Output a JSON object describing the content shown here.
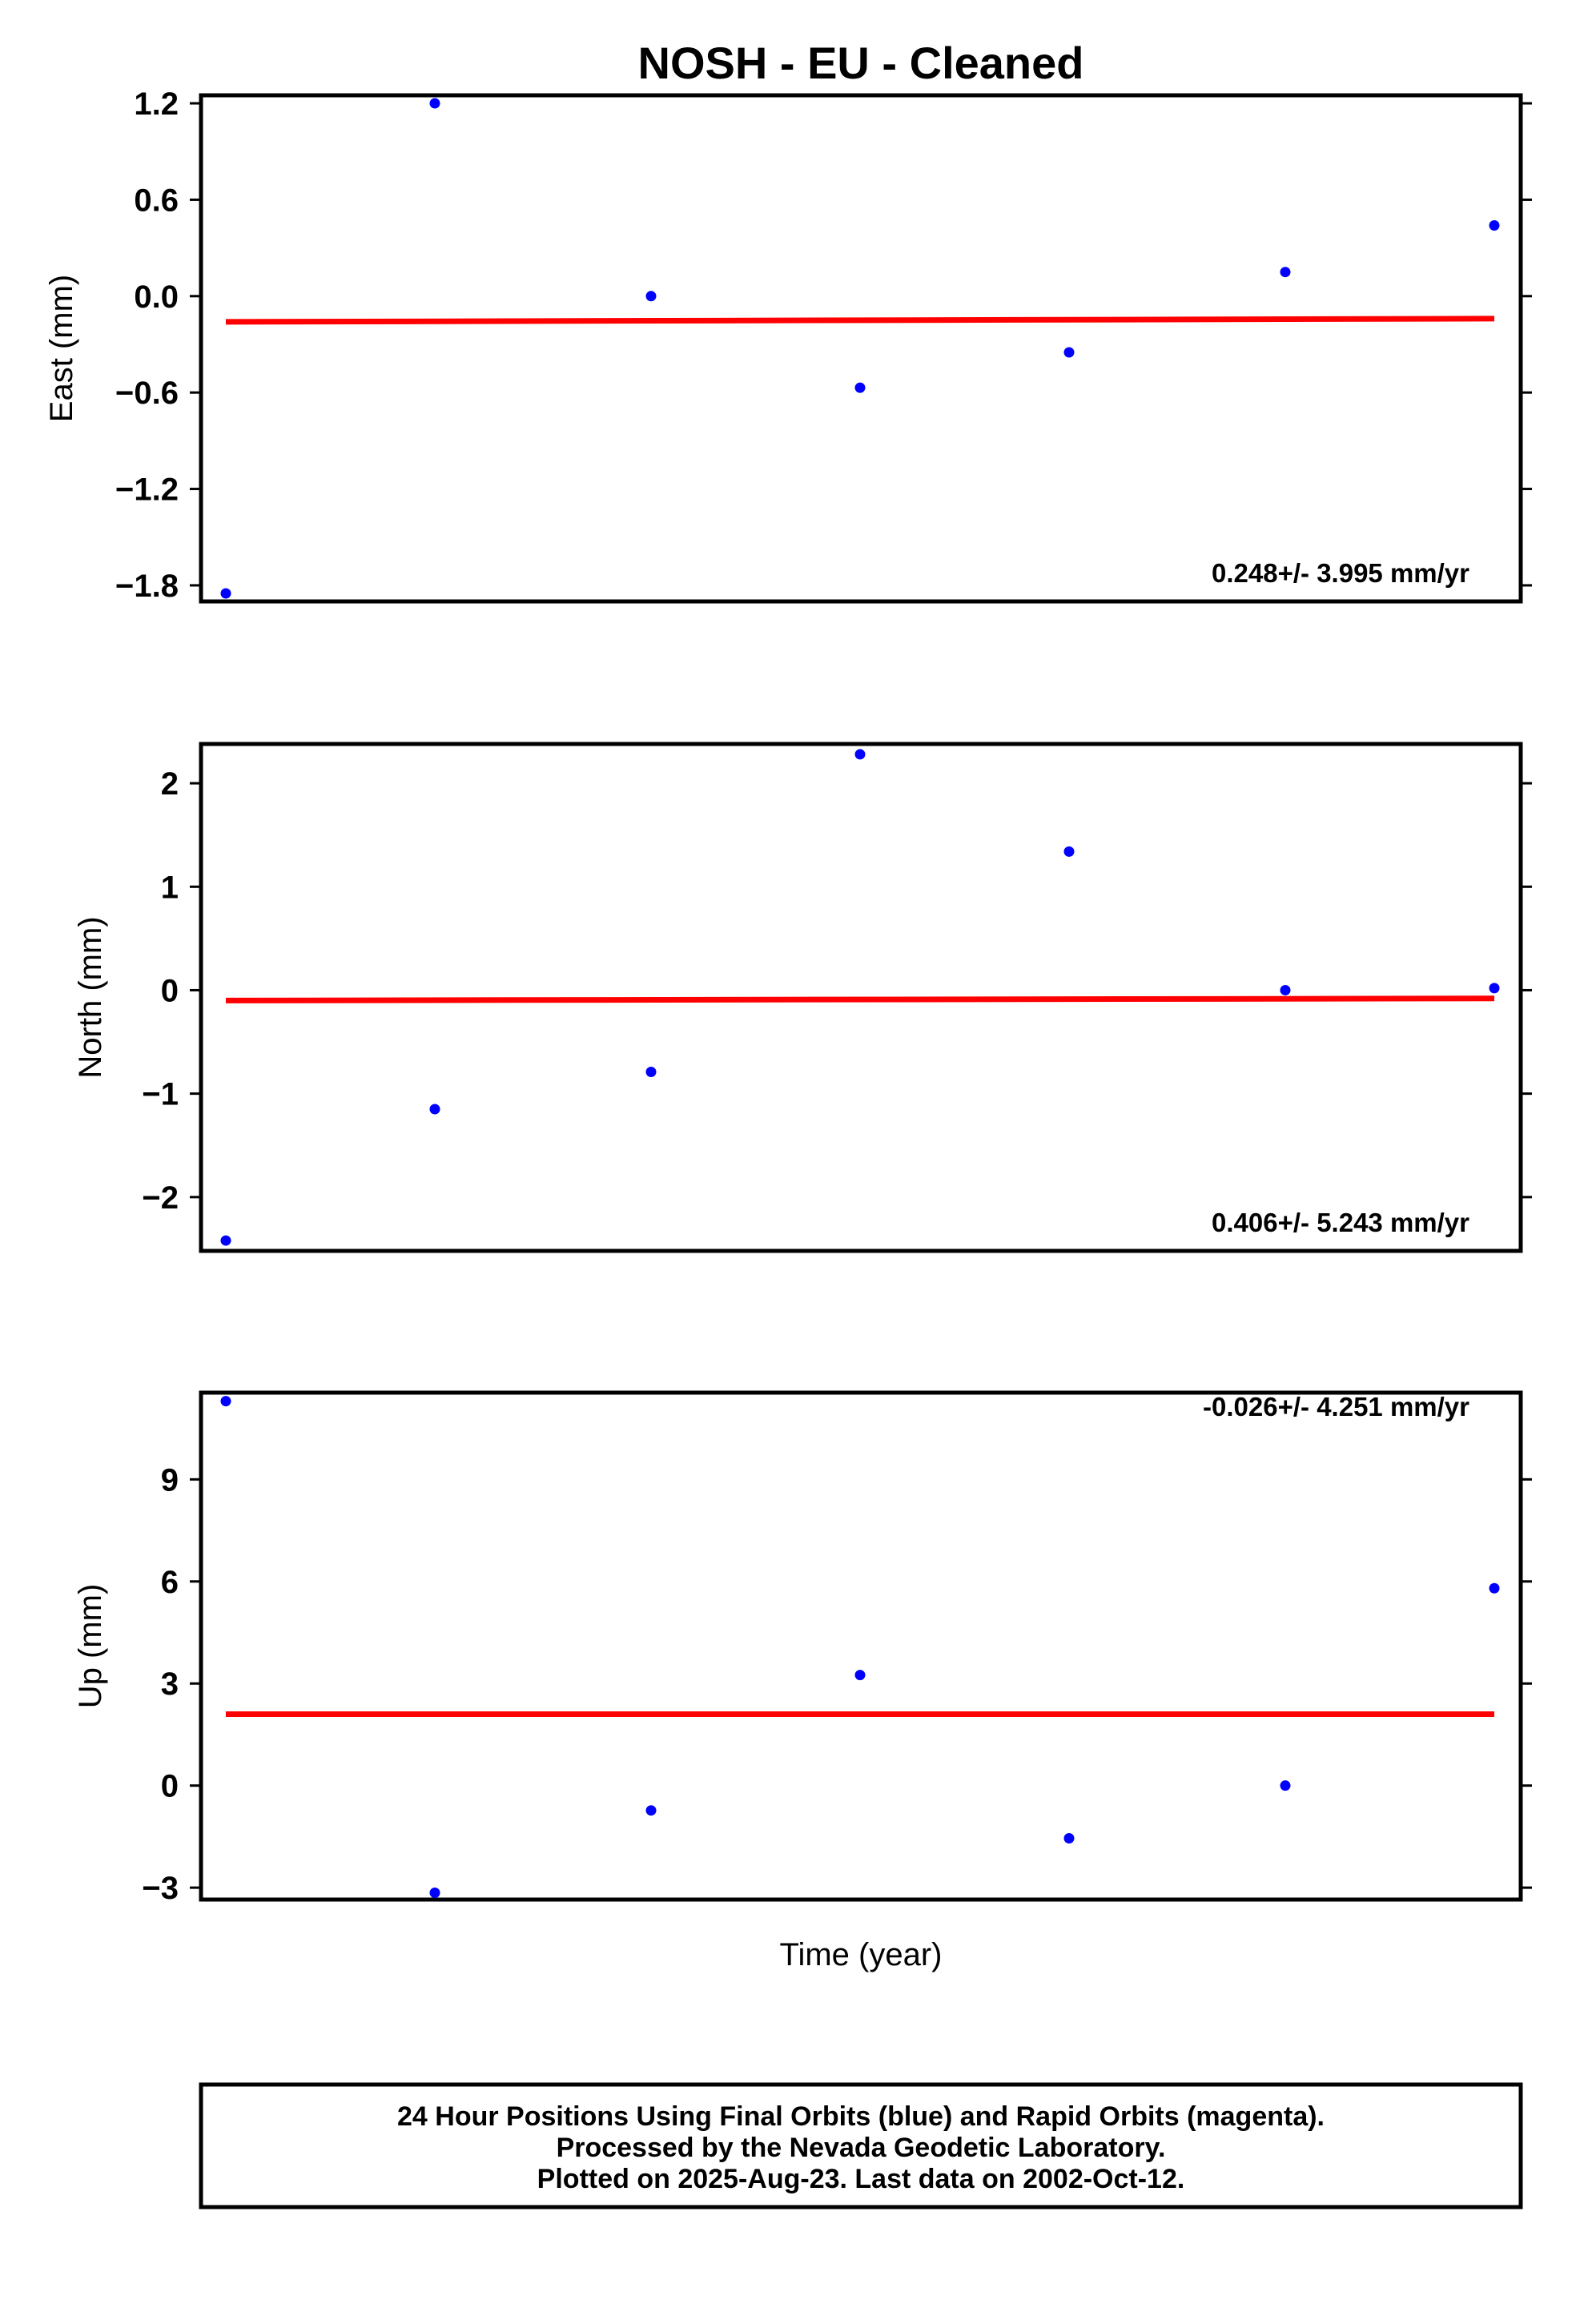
{
  "title": "NOSH  - EU - Cleaned",
  "xlabel": "Time (year)",
  "colors": {
    "final_orbit_points": "#0000ff",
    "trend_line": "#ff0000",
    "frame": "#000000"
  },
  "chart_data": [
    {
      "type": "scatter",
      "ylabel": "East (mm)",
      "yticks": [
        1.2,
        0.6,
        0.0,
        -0.6,
        -1.2,
        -1.8
      ],
      "ytick_labels": [
        "1.2",
        "0.6",
        "0.0",
        "−0.6",
        "−1.2",
        "−1.8"
      ],
      "ylim": [
        -1.9,
        1.25
      ],
      "x": [
        0,
        1,
        2,
        3,
        4,
        5,
        6
      ],
      "values": [
        -1.85,
        1.2,
        0.0,
        -0.57,
        -0.35,
        0.15,
        0.44
      ],
      "trend": {
        "start": -0.16,
        "end": -0.14
      },
      "rate": "0.248+/- 3.995 mm/yr",
      "rate_position": "bottom-right"
    },
    {
      "type": "scatter",
      "ylabel": "North (mm)",
      "yticks": [
        2,
        1,
        0,
        -1,
        -2
      ],
      "ytick_labels": [
        "2",
        "1",
        "0",
        "−1",
        "−2"
      ],
      "ylim": [
        -2.52,
        2.38
      ],
      "x": [
        0,
        1,
        2,
        3,
        4,
        5,
        6
      ],
      "values": [
        -2.42,
        -1.15,
        -0.79,
        2.28,
        1.34,
        0.0,
        0.02
      ],
      "trend": {
        "start": -0.1,
        "end": -0.08
      },
      "rate": "0.406+/- 5.243 mm/yr",
      "rate_position": "bottom-right"
    },
    {
      "type": "scatter",
      "ylabel": "Up (mm)",
      "yticks": [
        9,
        6,
        3,
        0,
        -3
      ],
      "ytick_labels": [
        "9",
        "6",
        "3",
        "0",
        "−3"
      ],
      "ylim": [
        -3.35,
        11.55
      ],
      "x": [
        0,
        1,
        2,
        3,
        4,
        5,
        6
      ],
      "values": [
        11.3,
        -3.15,
        -0.73,
        3.25,
        -1.55,
        0.0,
        5.8
      ],
      "trend": {
        "start": 2.1,
        "end": 2.1
      },
      "rate": "-0.026+/- 4.251 mm/yr",
      "rate_position": "top-right"
    }
  ],
  "footer": {
    "lines": [
      "24 Hour Positions Using Final Orbits (blue) and Rapid Orbits (magenta).",
      "Processed by the Nevada Geodetic Laboratory.",
      "Plotted on 2025-Aug-23. Last data on 2002-Oct-12."
    ]
  }
}
